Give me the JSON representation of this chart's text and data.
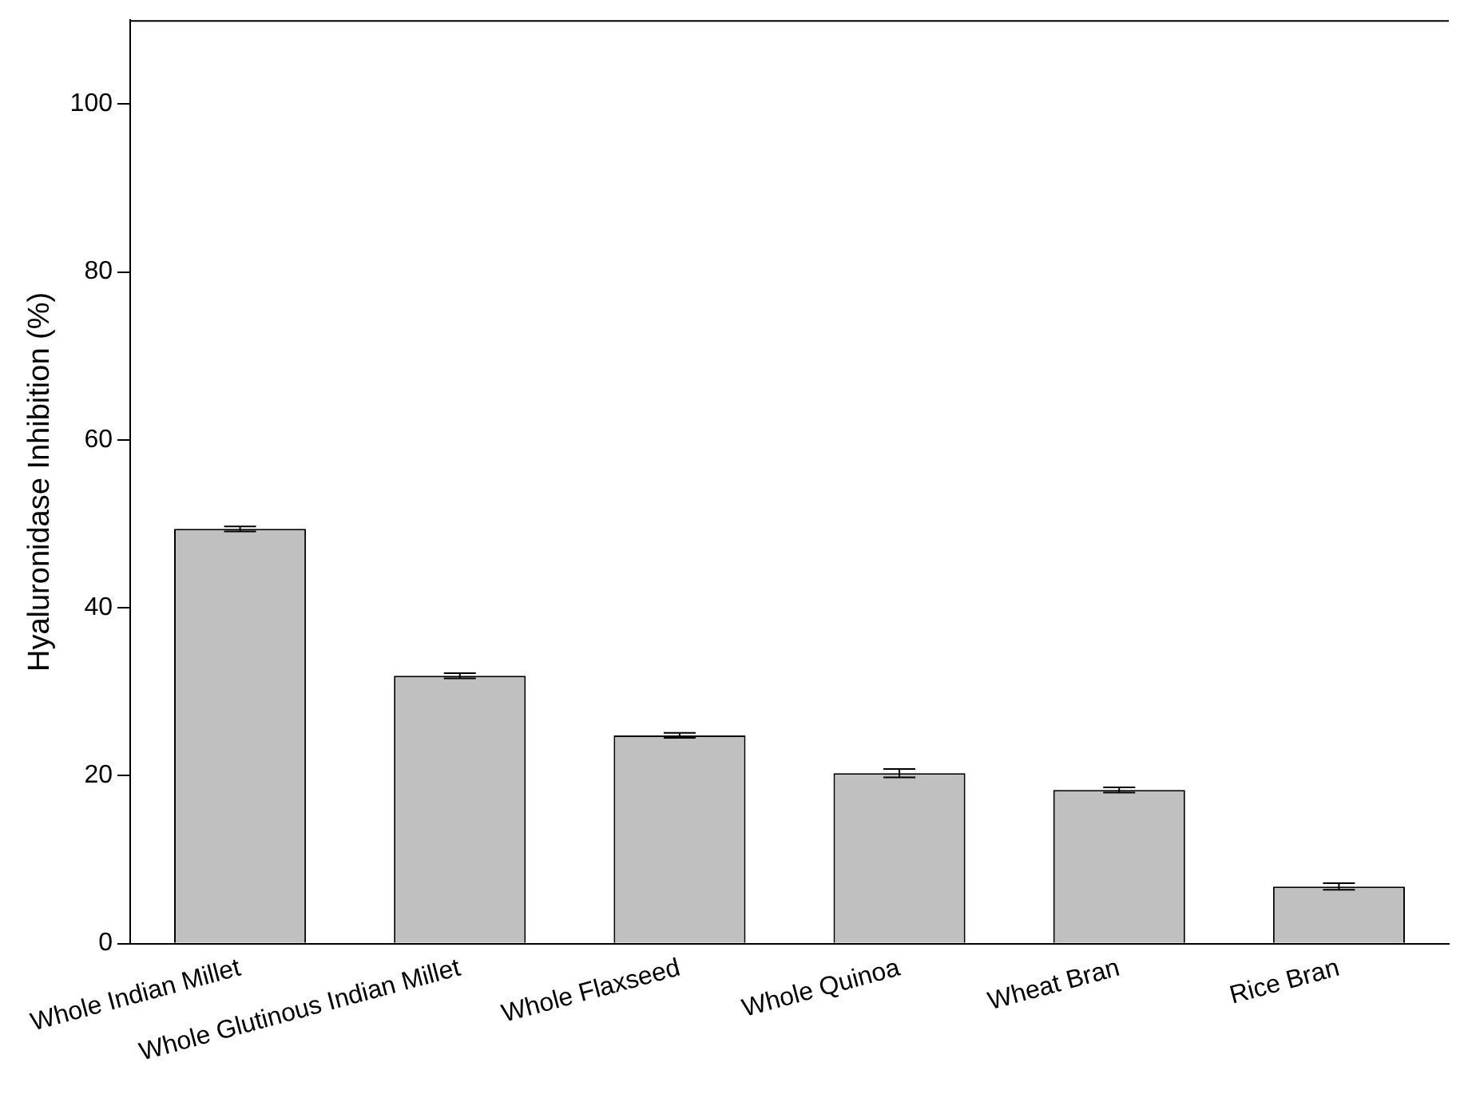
{
  "chart_data": {
    "type": "bar",
    "ylabel": "Hyaluronidase Inhibition (%)",
    "categories": [
      "Whole Indian Millet",
      "Whole Glutinous Indian Millet",
      "Whole Flaxseed",
      "Whole Quinoa",
      "Wheat Bran",
      "Rice Bran"
    ],
    "values": [
      49.4,
      31.9,
      24.8,
      20.3,
      18.3,
      6.8
    ],
    "errors": [
      0.3,
      0.3,
      0.3,
      0.5,
      0.3,
      0.4
    ],
    "color": "#c0c0c0",
    "ylim": [
      0,
      110
    ],
    "yticks": [
      0,
      20,
      40,
      60,
      80,
      100
    ],
    "grid": false,
    "legend": false
  }
}
